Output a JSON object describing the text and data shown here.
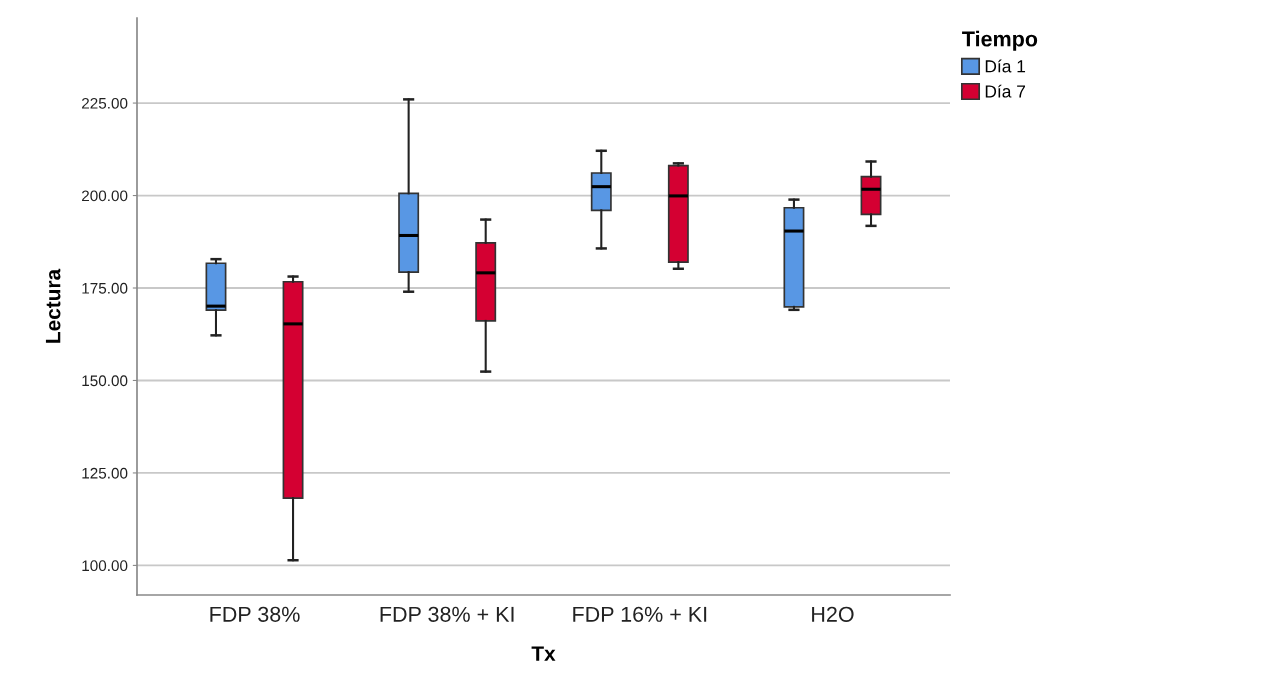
{
  "chart_data": {
    "type": "box",
    "xlabel": "Tx",
    "ylabel": "Lectura",
    "legend_title": "Tiempo",
    "categories": [
      "FDP 38%",
      "FDP 38% + KI",
      "FDP 16% + KI",
      "H2O"
    ],
    "series": [
      {
        "name": "Día 1",
        "color": "#5897e4",
        "boxes": [
          {
            "low": 162.2,
            "q1": 169.0,
            "median": 170.1,
            "q3": 181.7,
            "high": 182.8
          },
          {
            "low": 174.0,
            "q1": 179.3,
            "median": 189.2,
            "q3": 200.6,
            "high": 226.0
          },
          {
            "low": 185.7,
            "q1": 196.0,
            "median": 202.4,
            "q3": 206.1,
            "high": 212.1
          },
          {
            "low": 169.1,
            "q1": 169.9,
            "median": 190.4,
            "q3": 196.7,
            "high": 198.9
          }
        ]
      },
      {
        "name": "Día 7",
        "color": "#d40032",
        "boxes": [
          {
            "low": 101.4,
            "q1": 118.2,
            "median": 165.3,
            "q3": 176.7,
            "high": 178.1
          },
          {
            "low": 152.4,
            "q1": 166.1,
            "median": 179.1,
            "q3": 187.2,
            "high": 193.5
          },
          {
            "low": 180.2,
            "q1": 182.0,
            "median": 199.9,
            "q3": 208.1,
            "high": 208.7
          },
          {
            "low": 191.8,
            "q1": 194.9,
            "median": 201.7,
            "q3": 205.1,
            "high": 209.2
          }
        ]
      }
    ],
    "ylim": [
      92,
      248
    ],
    "yticks": [
      {
        "value": 100,
        "label": "100.00"
      },
      {
        "value": 125,
        "label": "125.00"
      },
      {
        "value": 150,
        "label": "150.00"
      },
      {
        "value": 175,
        "label": "175.00"
      },
      {
        "value": 200,
        "label": "200.00"
      },
      {
        "value": 225,
        "label": "225.00"
      }
    ],
    "grid": "y",
    "legend": "top right"
  }
}
